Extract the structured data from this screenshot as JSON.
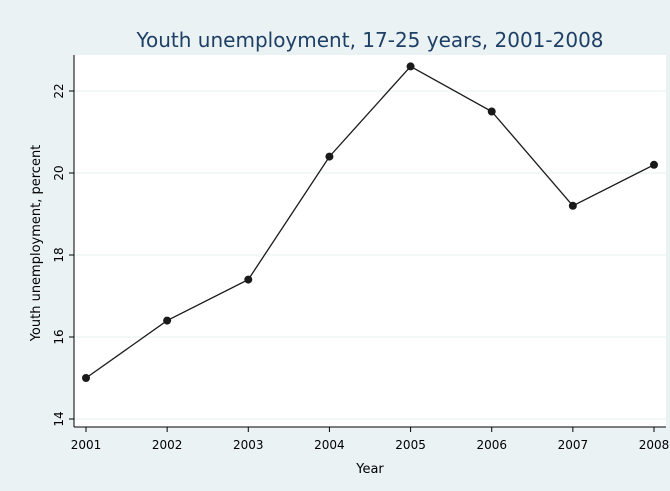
{
  "chart_data": {
    "type": "line",
    "title": "Youth unemployment, 17-25 years, 2001-2008",
    "xlabel": "Year",
    "ylabel": "Youth unemployment, percent",
    "x": [
      2001,
      2002,
      2003,
      2004,
      2005,
      2006,
      2007,
      2008
    ],
    "series": [
      {
        "values": [
          15.0,
          16.4,
          17.4,
          20.4,
          22.6,
          21.5,
          19.2,
          20.2
        ]
      }
    ],
    "xlim": [
      2001,
      2008
    ],
    "ylim": [
      14,
      22.8
    ],
    "xticks": [
      "2001",
      "2002",
      "2003",
      "2004",
      "2005",
      "2006",
      "2007",
      "2008"
    ],
    "yticks": [
      "14",
      "16",
      "18",
      "20",
      "22"
    ],
    "grid": "horizontal",
    "colors": {
      "background": "#eaf2f3",
      "plot_background": "#ffffff",
      "title": "#1e3f66",
      "line": "#1a1a1a",
      "grid": "#eaf2f3"
    }
  }
}
